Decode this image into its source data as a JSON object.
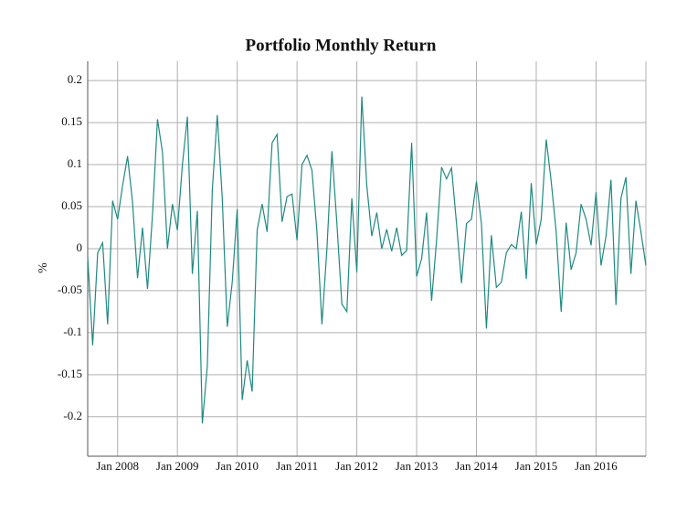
{
  "chart_data": {
    "type": "line",
    "title": "Portfolio Monthly Return",
    "y_label": "%",
    "x": [
      "2007-07",
      "2007-08",
      "2007-09",
      "2007-10",
      "2007-11",
      "2007-12",
      "2008-01",
      "2008-02",
      "2008-03",
      "2008-04",
      "2008-05",
      "2008-06",
      "2008-07",
      "2008-08",
      "2008-09",
      "2008-10",
      "2008-11",
      "2008-12",
      "2009-01",
      "2009-02",
      "2009-03",
      "2009-04",
      "2009-05",
      "2009-06",
      "2009-07",
      "2009-08",
      "2009-09",
      "2009-10",
      "2009-11",
      "2009-12",
      "2010-01",
      "2010-02",
      "2010-03",
      "2010-04",
      "2010-05",
      "2010-06",
      "2010-07",
      "2010-08",
      "2010-09",
      "2010-10",
      "2010-11",
      "2010-12",
      "2011-01",
      "2011-02",
      "2011-03",
      "2011-04",
      "2011-05",
      "2011-06",
      "2011-07",
      "2011-08",
      "2011-09",
      "2011-10",
      "2011-11",
      "2011-12",
      "2012-01",
      "2012-02",
      "2012-03",
      "2012-04",
      "2012-05",
      "2012-06",
      "2012-07",
      "2012-08",
      "2012-09",
      "2012-10",
      "2012-11",
      "2012-12",
      "2013-01",
      "2013-02",
      "2013-03",
      "2013-04",
      "2013-05",
      "2013-06",
      "2013-07",
      "2013-08",
      "2013-09",
      "2013-10",
      "2013-11",
      "2013-12",
      "2014-01",
      "2014-02",
      "2014-03",
      "2014-04",
      "2014-05",
      "2014-06",
      "2014-07",
      "2014-08",
      "2014-09",
      "2014-10",
      "2014-11",
      "2014-12",
      "2015-01",
      "2015-02",
      "2015-03",
      "2015-04",
      "2015-05",
      "2015-06",
      "2015-07",
      "2015-08",
      "2015-09",
      "2015-10",
      "2015-11",
      "2015-12",
      "2016-01",
      "2016-02",
      "2016-03",
      "2016-04",
      "2016-05",
      "2016-06",
      "2016-07",
      "2016-08",
      "2016-09",
      "2016-10",
      "2016-11"
    ],
    "series": [
      {
        "color": "#1f8a80",
        "values": [
          -0.01,
          -0.115,
          -0.005,
          0.007,
          -0.09,
          0.057,
          0.035,
          0.075,
          0.11,
          0.055,
          -0.035,
          0.025,
          -0.048,
          0.04,
          0.154,
          0.115,
          0.0,
          0.053,
          0.022,
          0.1,
          0.157,
          -0.03,
          0.045,
          -0.208,
          -0.14,
          0.07,
          0.159,
          0.06,
          -0.093,
          -0.04,
          0.047,
          -0.18,
          -0.133,
          -0.17,
          0.022,
          0.053,
          0.02,
          0.126,
          0.136,
          0.032,
          0.062,
          0.065,
          0.01,
          0.1,
          0.111,
          0.093,
          0.02,
          -0.09,
          0.0,
          0.116,
          0.03,
          -0.066,
          -0.075,
          0.06,
          -0.028,
          0.181,
          0.075,
          0.015,
          0.043,
          0.0,
          0.023,
          -0.003,
          0.025,
          -0.008,
          -0.002,
          0.126,
          -0.033,
          -0.012,
          0.043,
          -0.062,
          0.01,
          0.097,
          0.083,
          0.096,
          0.03,
          -0.041,
          0.03,
          0.035,
          0.08,
          0.03,
          -0.095,
          0.016,
          -0.046,
          -0.04,
          -0.005,
          0.005,
          0.0,
          0.044,
          -0.036,
          0.078,
          0.005,
          0.035,
          0.13,
          0.08,
          0.02,
          -0.075,
          0.031,
          -0.025,
          -0.005,
          0.053,
          0.035,
          0.004,
          0.067,
          -0.02,
          0.015,
          0.082,
          -0.067,
          0.06,
          0.085,
          -0.03,
          0.057,
          0.02,
          -0.02
        ]
      }
    ],
    "xlim": [
      "2007-07",
      "2016-11"
    ],
    "xticks": [
      {
        "value": "2008-01",
        "label": "Jan 2008"
      },
      {
        "value": "2009-01",
        "label": "Jan 2009"
      },
      {
        "value": "2010-01",
        "label": "Jan 2010"
      },
      {
        "value": "2011-01",
        "label": "Jan 2011"
      },
      {
        "value": "2012-01",
        "label": "Jan 2012"
      },
      {
        "value": "2013-01",
        "label": "Jan 2013"
      },
      {
        "value": "2014-01",
        "label": "Jan 2014"
      },
      {
        "value": "2015-01",
        "label": "Jan 2015"
      },
      {
        "value": "2016-01",
        "label": "Jan 2016"
      }
    ],
    "ylim": [
      -0.247,
      0.223
    ],
    "yticks": [
      -0.2,
      -0.15,
      -0.1,
      -0.05,
      0,
      0.05,
      0.1,
      0.15,
      0.2
    ],
    "grid": true
  }
}
